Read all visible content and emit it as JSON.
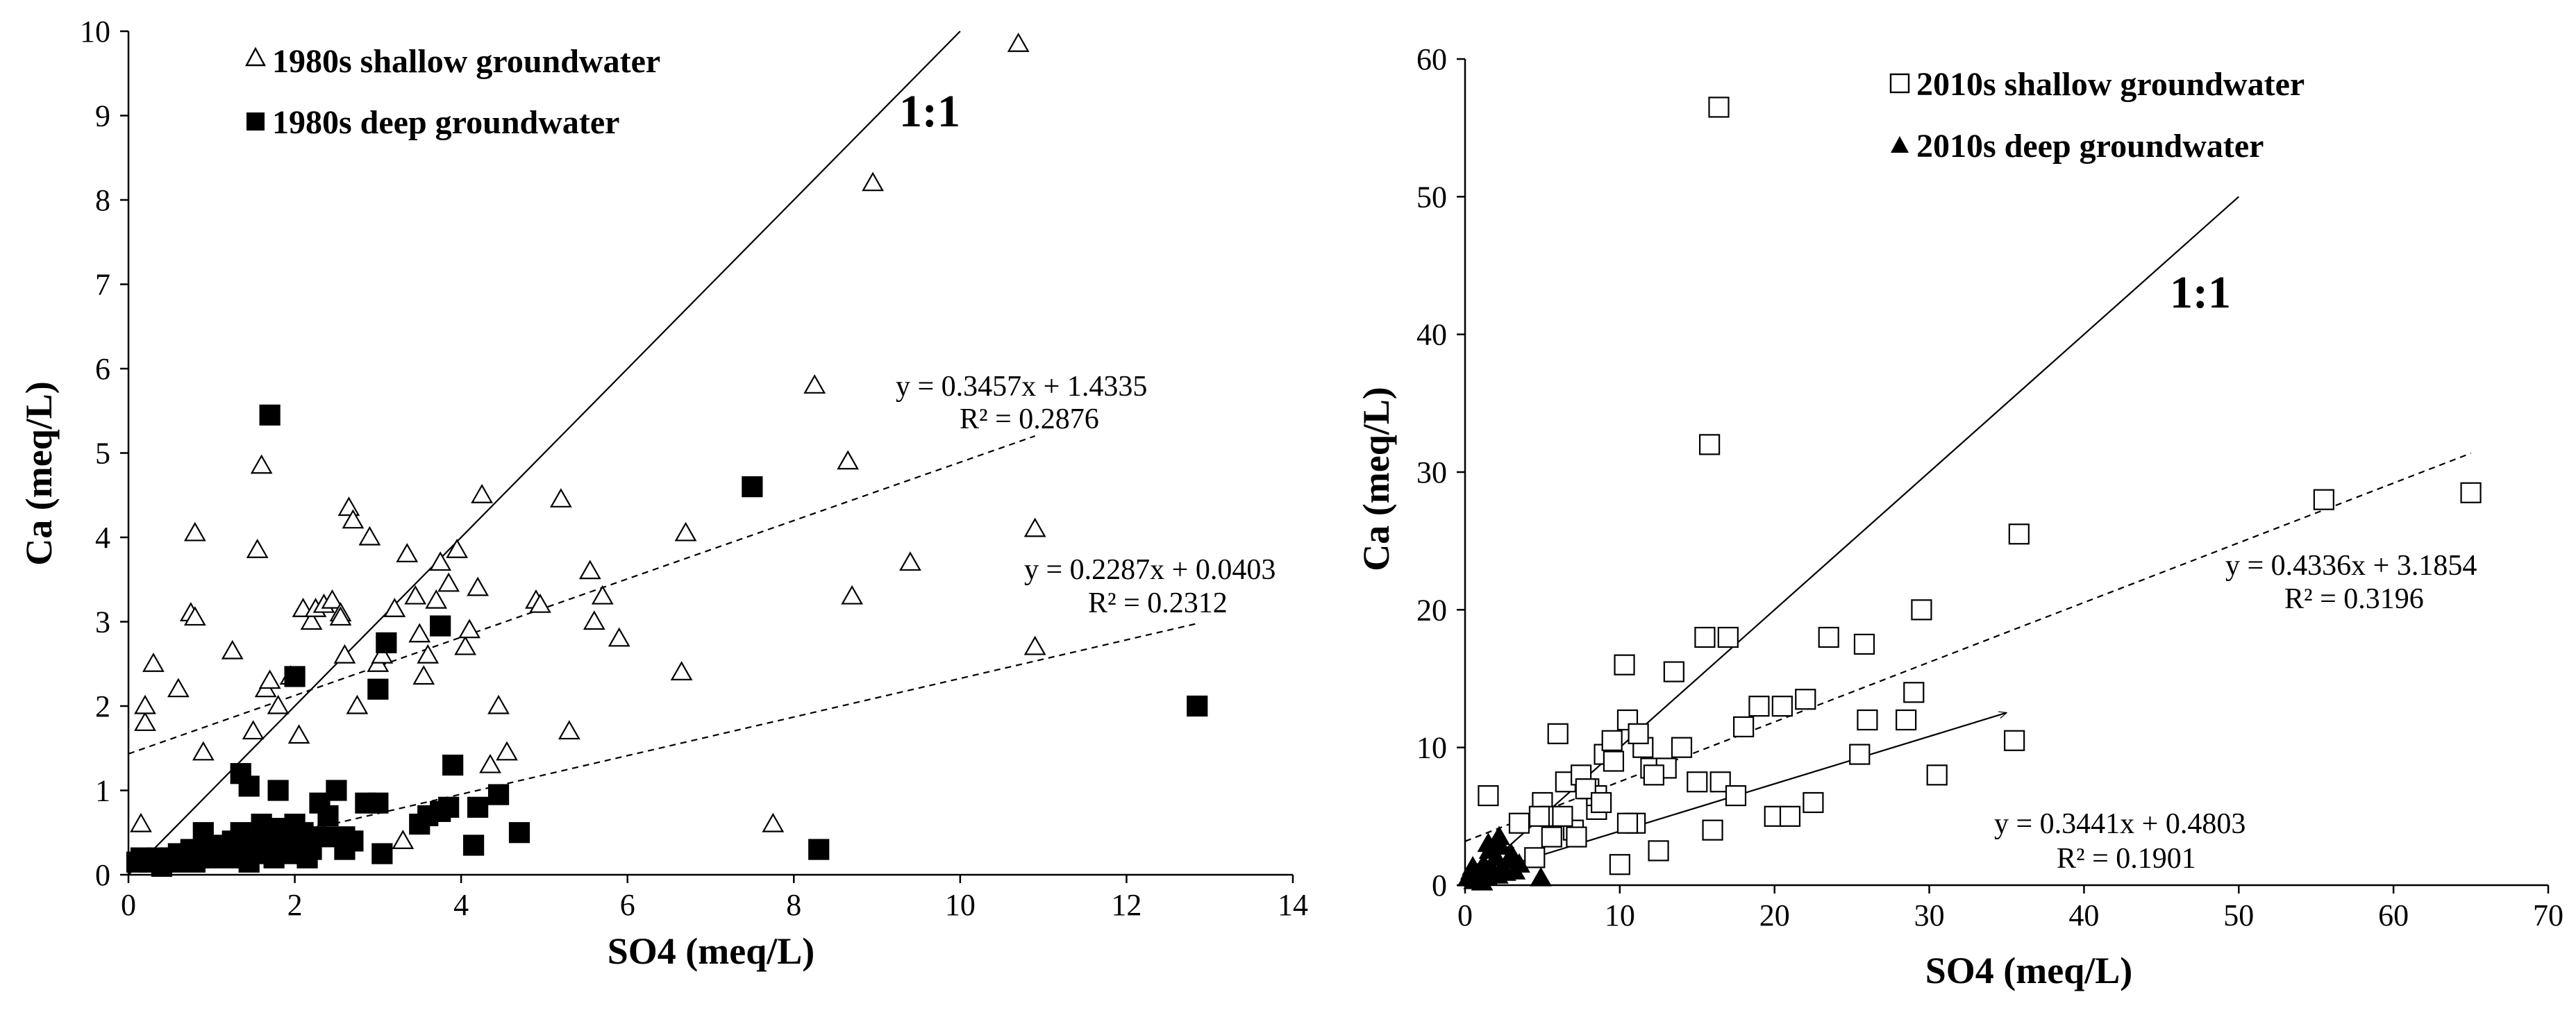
{
  "chart_data": [
    {
      "type": "scatter",
      "xlabel": "SO4 (meq/L)",
      "ylabel": "Ca (meq/L)",
      "xlim": [
        0,
        14
      ],
      "ylim": [
        0,
        10
      ],
      "xticks": [
        "0",
        "2",
        "4",
        "6",
        "8",
        "10",
        "12",
        "14"
      ],
      "yticks": [
        "0",
        "1",
        "2",
        "3",
        "4",
        "5",
        "6",
        "7",
        "8",
        "9",
        "10"
      ],
      "grid": false,
      "legend_position": "top-left",
      "series": [
        {
          "name": "1980s shallow groundwater",
          "marker": "open-triangle",
          "x": [
            0.15,
            0.2,
            0.3,
            0.2,
            0.6,
            0.75,
            0.8,
            0.8,
            0.9,
            1.25,
            1.5,
            1.55,
            1.65,
            1.6,
            1.7,
            1.8,
            1.95,
            2.05,
            2.1,
            2.2,
            2.25,
            2.35,
            2.45,
            2.55,
            2.55,
            2.6,
            2.65,
            2.7,
            2.75,
            2.9,
            3.0,
            3.05,
            3.2,
            3.35,
            3.45,
            3.5,
            3.55,
            3.6,
            3.7,
            3.75,
            3.85,
            3.95,
            4.05,
            4.1,
            4.2,
            4.25,
            4.35,
            4.45,
            4.55,
            4.9,
            4.95,
            5.2,
            5.3,
            5.55,
            5.6,
            5.7,
            5.9,
            6.7,
            6.65,
            7.75,
            8.25,
            8.65,
            8.7,
            8.95,
            9.4,
            10.7,
            10.9,
            10.9,
            2.1,
            2.3,
            3.3,
            1.9
          ],
          "y": [
            0.6,
            1.8,
            2.5,
            2.0,
            2.2,
            3.1,
            4.05,
            3.05,
            1.45,
            2.65,
            1.7,
            3.85,
            2.2,
            4.85,
            2.3,
            2.0,
            2.35,
            1.65,
            3.15,
            3.0,
            3.15,
            3.2,
            3.25,
            3.1,
            3.05,
            2.6,
            4.35,
            4.2,
            2.0,
            4.0,
            2.5,
            2.6,
            3.15,
            3.8,
            3.3,
            2.85,
            2.35,
            2.6,
            3.25,
            3.7,
            3.45,
            3.85,
            2.7,
            2.9,
            3.4,
            4.5,
            1.3,
            2.0,
            1.45,
            3.25,
            3.2,
            4.45,
            1.7,
            3.6,
            3.0,
            3.3,
            2.8,
            4.05,
            2.4,
            0.6,
            5.8,
            4.9,
            3.3,
            8.2,
            3.7,
            9.85,
            4.1,
            2.7,
            0.3,
            0.5,
            0.4,
            0.25
          ]
        },
        {
          "name": "1980s deep groundwater",
          "marker": "filled-square",
          "x": [
            0.1,
            0.15,
            0.25,
            0.35,
            0.4,
            0.5,
            0.55,
            0.6,
            0.65,
            0.75,
            0.8,
            0.85,
            0.9,
            0.95,
            1.0,
            1.05,
            1.1,
            1.2,
            1.25,
            1.3,
            1.35,
            1.4,
            1.45,
            1.5,
            1.55,
            1.6,
            1.65,
            1.7,
            1.75,
            1.8,
            1.85,
            1.9,
            1.95,
            2.0,
            2.05,
            2.1,
            2.15,
            2.2,
            2.3,
            2.4,
            2.5,
            2.6,
            2.7,
            2.85,
            3.0,
            3.05,
            3.1,
            3.5,
            3.6,
            3.75,
            3.85,
            3.9,
            4.15,
            4.2,
            4.45,
            4.7,
            1.35,
            1.45,
            1.65,
            1.8,
            1.85,
            2.0,
            2.35,
            2.6,
            3.0,
            3.75,
            7.5,
            8.3,
            12.85,
            1.7
          ],
          "y": [
            0.15,
            0.2,
            0.15,
            0.2,
            0.1,
            0.2,
            0.15,
            0.25,
            0.2,
            0.3,
            0.15,
            0.2,
            0.5,
            0.25,
            0.35,
            0.2,
            0.3,
            0.25,
            0.4,
            0.2,
            0.5,
            0.35,
            0.15,
            0.4,
            0.25,
            0.6,
            0.35,
            0.45,
            0.2,
            0.5,
            0.3,
            0.4,
            0.25,
            0.6,
            0.35,
            0.5,
            0.2,
            0.3,
            0.85,
            0.7,
            1.0,
            0.45,
            0.4,
            0.85,
            2.2,
            0.25,
            2.75,
            0.6,
            0.7,
            0.75,
            0.8,
            1.3,
            0.35,
            0.8,
            0.95,
            0.5,
            1.2,
            1.05,
            0.5,
            1.0,
            0.55,
            2.35,
            0.45,
            0.3,
            0.85,
            2.95,
            4.6,
            0.3,
            2.0,
            5.45
          ]
        }
      ],
      "trendlines": [
        {
          "type": "linear",
          "style": "dashed",
          "slope": 0.3457,
          "intercept": 1.4335,
          "x_range": [
            0,
            10.9
          ],
          "equation": "y = 0.3457x + 1.4335",
          "r2": "R² = 0.2876"
        },
        {
          "type": "linear",
          "style": "dashed",
          "slope": 0.2287,
          "intercept": 0.0403,
          "x_range": [
            0,
            12.85
          ],
          "equation": "y = 0.2287x + 0.0403",
          "r2": "R² = 0.2312"
        }
      ],
      "reference_line": {
        "label": "1:1",
        "from": [
          0,
          0
        ],
        "to": [
          10,
          10
        ]
      }
    },
    {
      "type": "scatter",
      "xlabel": "SO4 (meq/L)",
      "ylabel": "Ca (meq/L)",
      "xlim": [
        0,
        70
      ],
      "ylim": [
        0,
        60
      ],
      "xticks": [
        "0",
        "10",
        "20",
        "30",
        "40",
        "50",
        "60",
        "70"
      ],
      "yticks": [
        "0",
        "10",
        "20",
        "30",
        "40",
        "50",
        "60"
      ],
      "grid": false,
      "legend_position": "top-right",
      "series": [
        {
          "name": "2010s shallow groundwater",
          "marker": "open-square",
          "x": [
            1.5,
            2.5,
            3.5,
            4.5,
            5.0,
            5.5,
            6.0,
            6.5,
            7.0,
            7.5,
            8.0,
            8.5,
            9.0,
            9.5,
            10.0,
            10.5,
            11.0,
            11.5,
            12.0,
            12.5,
            13.0,
            13.5,
            14.0,
            15.0,
            15.5,
            16.0,
            16.5,
            17.0,
            17.5,
            18.0,
            19.0,
            20.0,
            20.5,
            21.0,
            22.0,
            22.5,
            23.5,
            25.5,
            25.8,
            26.0,
            28.5,
            29.0,
            29.5,
            30.5,
            35.5,
            35.8,
            55.5,
            65.0,
            10.3,
            11.2,
            8.5,
            7.2,
            9.6,
            6.3,
            12.2,
            16.4,
            15.8,
            10.5,
            4.8,
            5.6,
            7.8,
            8.8
          ],
          "y": [
            6.5,
            2.0,
            4.5,
            2.0,
            6.0,
            5.0,
            11.0,
            7.5,
            4.0,
            8.0,
            7.0,
            5.5,
            9.5,
            10.5,
            1.5,
            12.0,
            4.5,
            10.0,
            8.5,
            2.5,
            8.5,
            15.5,
            10.0,
            7.5,
            18.0,
            4.0,
            7.5,
            18.0,
            6.5,
            11.5,
            13.0,
            5.0,
            13.0,
            5.0,
            13.5,
            6.0,
            18.0,
            9.5,
            17.5,
            12.0,
            12.0,
            14.0,
            20.0,
            8.0,
            10.5,
            25.5,
            28.0,
            28.5,
            16.0,
            11.0,
            6.5,
            3.5,
            9.0,
            5.0,
            8.0,
            56.5,
            32.0,
            4.5,
            5.0,
            3.5,
            7.0,
            6.0
          ]
        },
        {
          "name": "2010s deep groundwater",
          "marker": "filled-triangle",
          "x": [
            0.2,
            0.4,
            0.6,
            0.8,
            1.0,
            1.2,
            1.4,
            1.6,
            1.8,
            2.0,
            2.2,
            2.4,
            2.6,
            2.8,
            3.0,
            3.2,
            3.5,
            1.1,
            1.5,
            2.3,
            0.5,
            2.1,
            4.9
          ],
          "y": [
            0.5,
            1.0,
            0.3,
            0.8,
            0.4,
            1.5,
            0.6,
            2.5,
            1.0,
            2.0,
            3.5,
            1.2,
            0.9,
            1.8,
            2.2,
            1.0,
            1.5,
            0.2,
            3.0,
            2.8,
            1.3,
            0.7,
            0.5
          ]
        }
      ],
      "trendlines": [
        {
          "type": "linear",
          "style": "dashed",
          "slope": 0.4336,
          "intercept": 3.1854,
          "x_range": [
            0,
            65
          ],
          "equation": "y = 0.4336x + 3.1854",
          "r2": "R² = 0.3196"
        },
        {
          "type": "linear",
          "style": "solid-arrow",
          "slope": 0.3441,
          "intercept": 0.4803,
          "x_range": [
            0,
            35
          ],
          "equation": "y = 0.3441x + 0.4803",
          "r2": "R² = 0.1901"
        }
      ],
      "reference_line": {
        "label": "1:1",
        "from": [
          0,
          0
        ],
        "to": [
          50,
          50
        ]
      }
    }
  ]
}
